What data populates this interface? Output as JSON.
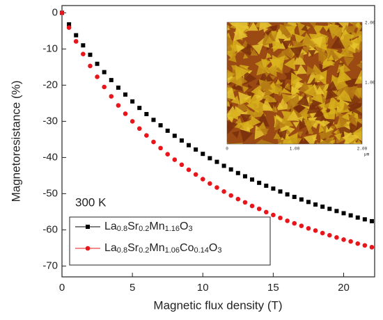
{
  "chart_data": {
    "type": "scatter",
    "x_label": "Magnetic flux density (T)",
    "y_label": "Magnetoresistance (%)",
    "annotation": "300 K",
    "x": [
      0,
      0.5,
      1,
      1.5,
      2,
      2.5,
      3,
      3.5,
      4,
      4.5,
      5,
      5.5,
      6,
      6.5,
      7,
      7.5,
      8,
      8.5,
      9,
      9.5,
      10,
      10.5,
      11,
      11.5,
      12,
      12.5,
      13,
      13.5,
      14,
      14.5,
      15,
      15.5,
      16,
      16.5,
      17,
      17.5,
      18,
      18.5,
      19,
      19.5,
      20,
      20.5,
      21,
      21.5,
      22
    ],
    "series": [
      {
        "name": "La0.8Sr0.2Mn1.16O3",
        "color": "#000000",
        "marker": "square",
        "values": [
          0,
          -3.2,
          -6.2,
          -9.0,
          -11.6,
          -14.1,
          -16.4,
          -18.6,
          -20.7,
          -22.6,
          -24.5,
          -26.3,
          -28.0,
          -29.6,
          -31.1,
          -32.6,
          -34.0,
          -35.3,
          -36.6,
          -37.8,
          -39.0,
          -40.2,
          -41.2,
          -42.3,
          -43.3,
          -44.3,
          -45.2,
          -46.1,
          -47.0,
          -47.8,
          -48.6,
          -49.4,
          -50.2,
          -50.9,
          -51.6,
          -52.3,
          -53.0,
          -53.6,
          -54.2,
          -54.8,
          -55.4,
          -56.0,
          -56.6,
          -57.1,
          -57.6
        ]
      },
      {
        "name": "La0.8Sr0.2Mn1.06Co0.14O3",
        "color": "#e8161b",
        "marker": "circle",
        "values": [
          0,
          -4.1,
          -7.9,
          -11.4,
          -14.7,
          -17.7,
          -20.5,
          -23.1,
          -25.6,
          -27.9,
          -30.0,
          -32.0,
          -33.9,
          -35.7,
          -37.4,
          -39.1,
          -40.6,
          -42.0,
          -43.4,
          -44.7,
          -46.0,
          -47.2,
          -48.3,
          -49.4,
          -50.5,
          -51.5,
          -52.4,
          -53.4,
          -54.2,
          -55.1,
          -55.9,
          -56.7,
          -57.5,
          -58.2,
          -58.9,
          -59.6,
          -60.2,
          -60.9,
          -61.5,
          -62.1,
          -62.7,
          -63.2,
          -63.8,
          -64.3,
          -64.8
        ]
      }
    ],
    "xlim": [
      0,
      22.2
    ],
    "ylim": [
      -73,
      2
    ],
    "xticks": [
      0,
      5,
      10,
      15,
      20
    ],
    "yticks": [
      0,
      -10,
      -20,
      -30,
      -40,
      -50,
      -60,
      -70
    ],
    "legend": "lower left",
    "inset": {
      "x_labels": [
        "0",
        "1.00",
        "2.00"
      ],
      "y_labels": [
        "2.00",
        "1.00"
      ],
      "unit": "µm"
    }
  }
}
